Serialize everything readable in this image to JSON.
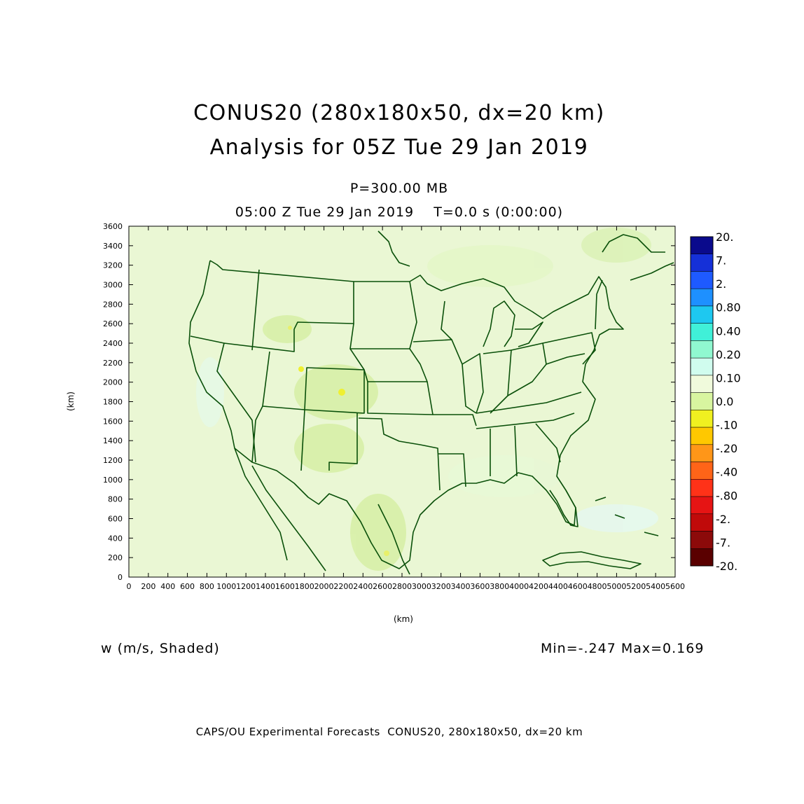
{
  "header": {
    "title": "CONUS20 (280x180x50, dx=20 km)",
    "subtitle": "Analysis for 05Z Tue 29 Jan 2019",
    "level": "P=300.00 MB",
    "valid_time": "05:00 Z Tue 29 Jan 2019    T=0.0 s (0:00:00)"
  },
  "axes": {
    "xlabel": "(km)",
    "ylabel": "(km)",
    "x_ticks": [
      "0",
      "200",
      "400",
      "600",
      "800",
      "1000",
      "1200",
      "1400",
      "1600",
      "1800",
      "2000",
      "2200",
      "2400",
      "2600",
      "2800",
      "3000",
      "3200",
      "3400",
      "3600",
      "3800",
      "4000",
      "4200",
      "4400",
      "4600",
      "4800",
      "5000",
      "5200",
      "5400",
      "5600"
    ],
    "y_ticks": [
      "0",
      "200",
      "400",
      "600",
      "800",
      "1000",
      "1200",
      "1400",
      "1600",
      "1800",
      "2000",
      "2200",
      "2400",
      "2600",
      "2800",
      "3000",
      "3200",
      "3400",
      "3600"
    ],
    "xlim": [
      0,
      5600
    ],
    "ylim": [
      0,
      3600
    ]
  },
  "colorbar": {
    "labels": [
      "20.",
      "7.",
      "2.",
      "0.80",
      "0.40",
      "0.20",
      "0.10",
      "0.0",
      "-.10",
      "-.20",
      "-.40",
      "-.80",
      "-2.",
      "-7.",
      "-20."
    ],
    "colors": [
      "#0a0a8c",
      "#1530d8",
      "#1e5aff",
      "#1e90ff",
      "#1ec8f0",
      "#40f0d8",
      "#90f8d0",
      "#d0fcee",
      "#f0fadc",
      "#d8f5a0",
      "#f0f020",
      "#ffc800",
      "#ff9618",
      "#ff6418",
      "#ff3218",
      "#e61414",
      "#c00a0a",
      "#8c0a0a",
      "#5a0000"
    ]
  },
  "footer": {
    "field": "w (m/s, Shaded)",
    "minmax": "Min=-.247 Max=0.169",
    "credit": "CAPS/OU Experimental Forecasts  CONUS20, 280x180x50, dx=20 km"
  },
  "map_colors": {
    "background": "#eaf7d4",
    "land_tint": "#e0f4c0",
    "boundary": "#0a500a"
  }
}
